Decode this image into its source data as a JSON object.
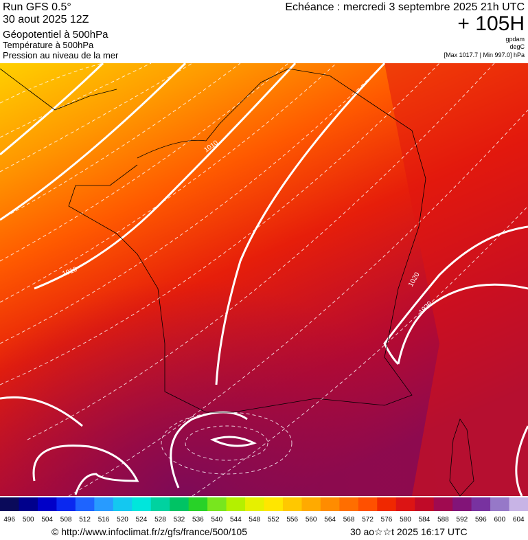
{
  "header": {
    "left": [
      "Run GFS 0.5°",
      "30 aout 2025 12Z",
      "Géopotentiel à 500hPa",
      "Température à 500hPa",
      "Pression au niveau de la mer"
    ],
    "right": {
      "valid": "Echéance : mercredi 3 septembre 2025 21h UTC",
      "lead": "+ 105H",
      "unit1": "gpdam",
      "unit2": "degC",
      "range": "[Max 1017.7 | Min 997.0] hPa"
    }
  },
  "map": {
    "contour_labels": [
      "1010",
      "1010",
      "1020",
      "1020"
    ]
  },
  "scale": {
    "labels": [
      496,
      500,
      504,
      508,
      512,
      516,
      520,
      524,
      528,
      532,
      536,
      540,
      544,
      548,
      552,
      556,
      560,
      564,
      568,
      572,
      576,
      580,
      584,
      588,
      592,
      596,
      600,
      604
    ],
    "colors": [
      "#0a0a5a",
      "#00008c",
      "#0000c8",
      "#0a28f0",
      "#1e64ff",
      "#289bff",
      "#14c8f0",
      "#00e6dc",
      "#00d2a0",
      "#00c364",
      "#28d228",
      "#78e61e",
      "#b4f000",
      "#e6f000",
      "#ffe600",
      "#ffc800",
      "#ffaa00",
      "#ff8c00",
      "#ff6e00",
      "#ff5000",
      "#f02800",
      "#dc1414",
      "#c00a28",
      "#a00a50",
      "#821478",
      "#7832a0",
      "#9678c8",
      "#c8b4e6"
    ]
  },
  "footer": {
    "url": "© http://www.infoclimat.fr/z/gfs/france/500/105",
    "time": "30 ao☆☆t 2025 16:17 UTC"
  }
}
